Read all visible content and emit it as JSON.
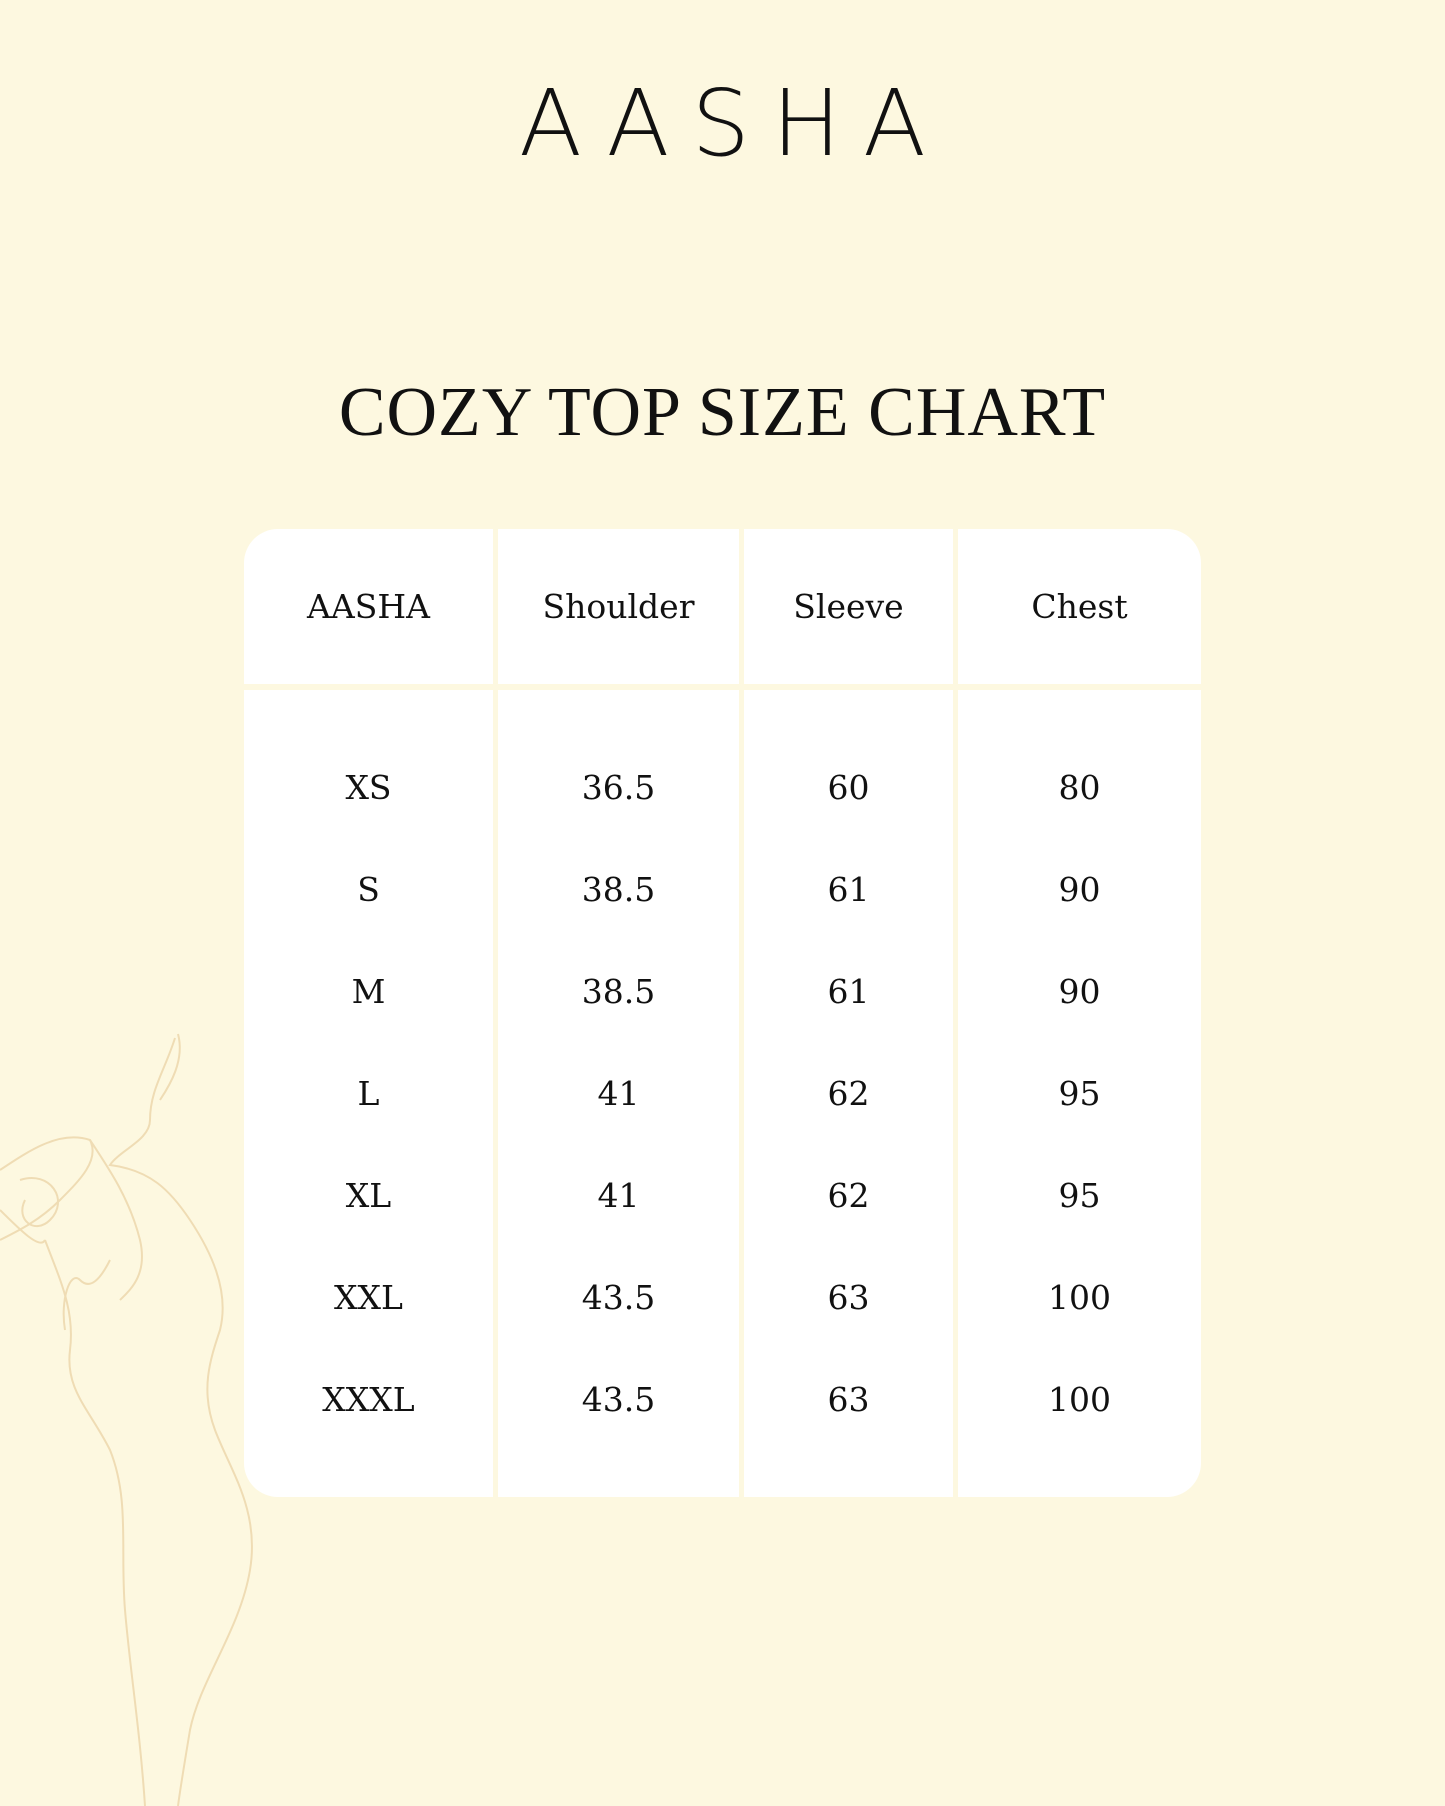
{
  "brand": {
    "logo": "AASHA"
  },
  "title": "COZY TOP SIZE CHART",
  "table": {
    "headers": [
      "AASHA",
      "Shoulder",
      "Sleeve",
      "Chest"
    ],
    "rows": [
      [
        "XS",
        "36.5",
        "60",
        "80"
      ],
      [
        "S",
        "38.5",
        "61",
        "90"
      ],
      [
        "M",
        "38.5",
        "61",
        "90"
      ],
      [
        "L",
        "41",
        "62",
        "95"
      ],
      [
        "XL",
        "41",
        "62",
        "95"
      ],
      [
        "XXL",
        "43.5",
        "63",
        "100"
      ],
      [
        "XXXL",
        "43.5",
        "63",
        "100"
      ]
    ]
  },
  "colors": {
    "background": "#fdf8e0",
    "table": "#ffffff",
    "line_art": "#efdcb4"
  }
}
